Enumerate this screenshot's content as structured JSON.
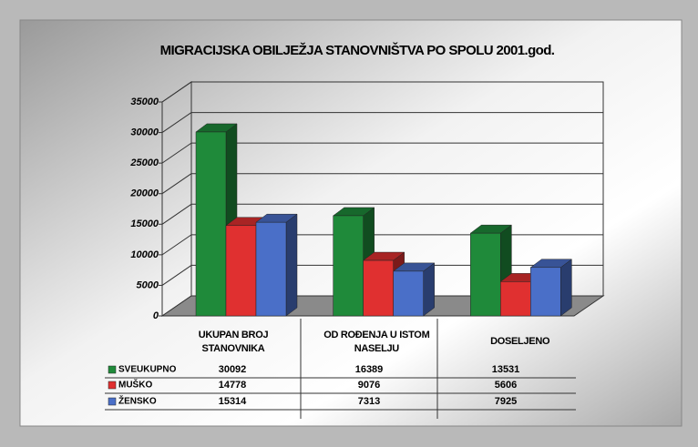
{
  "chart_data": {
    "type": "bar3d",
    "title": "MIGRACIJSKA OBILJEŽJA STANOVNIŠTVA PO SPOLU  2001.god.",
    "categories": [
      "UKUPAN BROJ STANOVNIKA",
      "OD ROĐENJA U ISTOM NASELJU",
      "DOSELJENO"
    ],
    "series": [
      {
        "name": "SVEUKUPNO",
        "color": "#1f8a3a",
        "values": [
          30092,
          16389,
          13531
        ]
      },
      {
        "name": "MUŠKO",
        "color": "#e03030",
        "values": [
          14778,
          9076,
          5606
        ]
      },
      {
        "name": "ŽENSKO",
        "color": "#4a6fc8",
        "values": [
          15314,
          7313,
          7925
        ]
      }
    ],
    "ylim": [
      0,
      35000
    ],
    "yticks": [
      0,
      5000,
      10000,
      15000,
      20000,
      25000,
      30000,
      35000
    ],
    "grid": true
  }
}
